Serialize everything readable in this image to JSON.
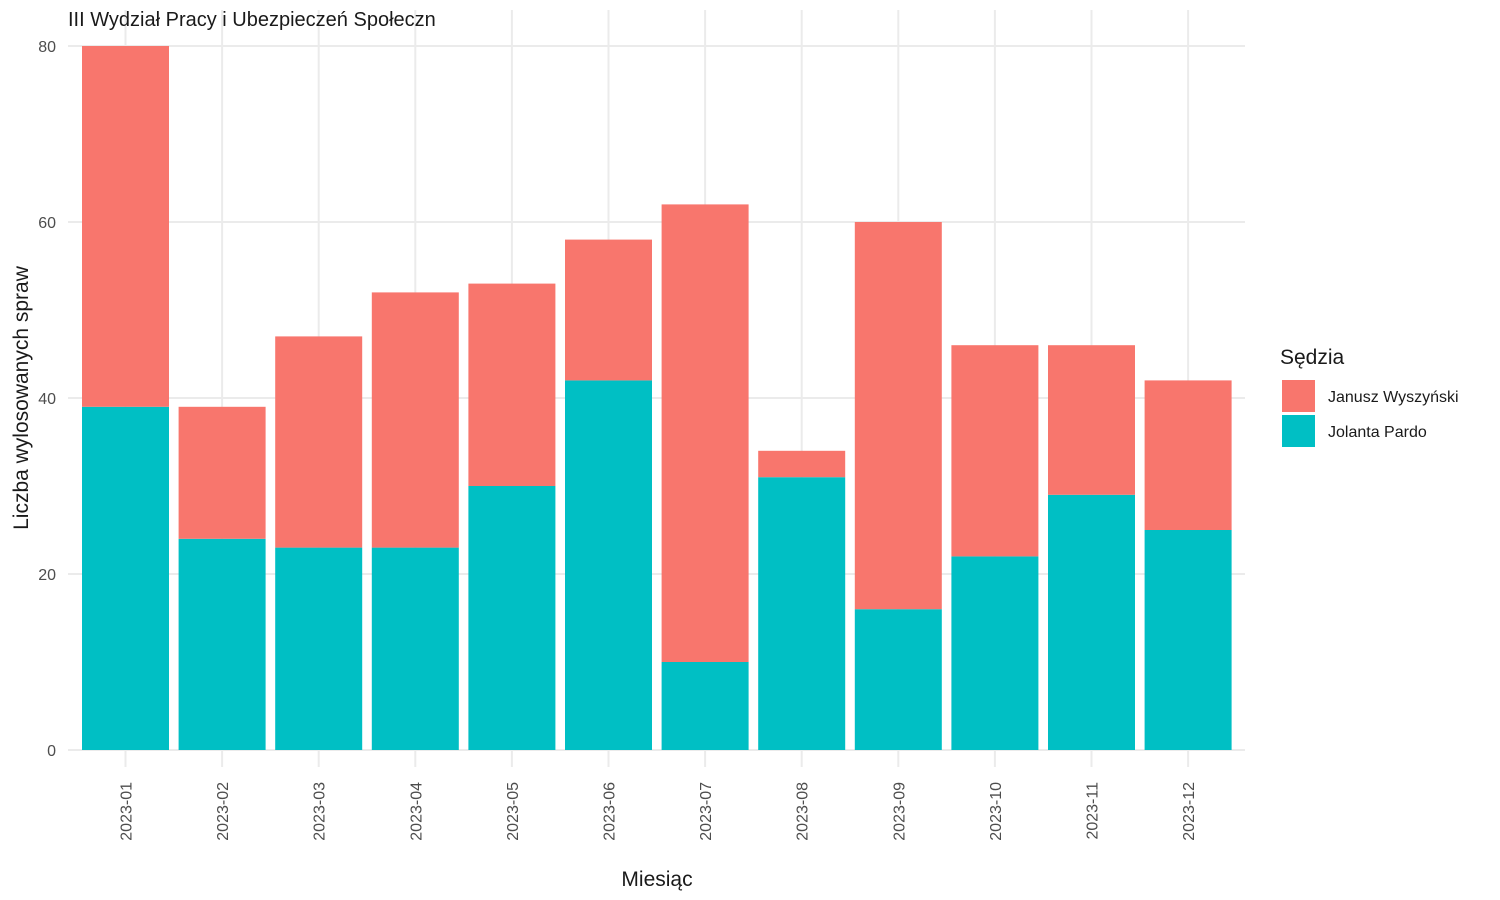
{
  "chart_data": {
    "type": "bar",
    "stacked": true,
    "title": "III Wydział Pracy i Ubezpieczeń Społeczn",
    "xlabel": "Miesiąc",
    "ylabel": "Liczba wylosowanych spraw",
    "categories": [
      "2023-01",
      "2023-02",
      "2023-03",
      "2023-04",
      "2023-05",
      "2023-06",
      "2023-07",
      "2023-08",
      "2023-09",
      "2023-10",
      "2023-11",
      "2023-12"
    ],
    "series": [
      {
        "name": "Jolanta Pardo",
        "color": "#00BFC4",
        "values": [
          39,
          24,
          23,
          23,
          30,
          42,
          10,
          31,
          16,
          22,
          29,
          25
        ]
      },
      {
        "name": "Janusz Wyszyński",
        "color": "#F8766D",
        "values": [
          41,
          15,
          24,
          29,
          23,
          16,
          52,
          3,
          44,
          24,
          17,
          17
        ]
      }
    ],
    "ylim": [
      0,
      80
    ],
    "yticks": [
      0,
      20,
      40,
      60,
      80
    ],
    "grid": true,
    "legend": {
      "title": "Sędzia",
      "position": "right",
      "entries": [
        "Janusz Wyszyński",
        "Jolanta Pardo"
      ]
    }
  }
}
